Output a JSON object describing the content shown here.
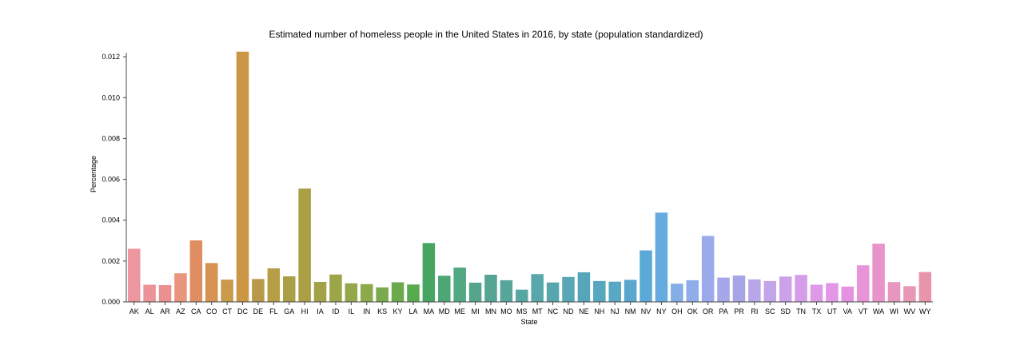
{
  "chart_data": {
    "type": "bar",
    "title": "Estimated number of homeless people in the United States in 2016, by state (population standardized)",
    "xlabel": "State",
    "ylabel": "Percentage",
    "ylim": [
      0,
      0.0122
    ],
    "yticks": [
      "0.000",
      "0.002",
      "0.004",
      "0.006",
      "0.008",
      "0.010",
      "0.012"
    ],
    "grid": false,
    "legend": "none",
    "categories": [
      "AK",
      "AL",
      "AR",
      "AZ",
      "CA",
      "CO",
      "CT",
      "DC",
      "DE",
      "FL",
      "GA",
      "HI",
      "IA",
      "ID",
      "IL",
      "IN",
      "KS",
      "KY",
      "LA",
      "MA",
      "MD",
      "ME",
      "MI",
      "MN",
      "MO",
      "MS",
      "MT",
      "NC",
      "ND",
      "NE",
      "NH",
      "NJ",
      "NM",
      "NV",
      "NY",
      "OH",
      "OK",
      "OR",
      "PA",
      "PR",
      "RI",
      "SC",
      "SD",
      "TN",
      "TX",
      "UT",
      "VA",
      "VT",
      "WA",
      "WI",
      "WV",
      "WY"
    ],
    "values": [
      0.0026,
      0.00084,
      0.00082,
      0.0014,
      0.00301,
      0.0019,
      0.00109,
      0.01225,
      0.00112,
      0.00164,
      0.00125,
      0.00555,
      0.00098,
      0.00134,
      0.00091,
      0.00087,
      0.00071,
      0.00096,
      0.00085,
      0.00288,
      0.00128,
      0.00168,
      0.00094,
      0.00133,
      0.00106,
      0.0006,
      0.00136,
      0.00095,
      0.00122,
      0.00145,
      0.00102,
      0.00099,
      0.00108,
      0.00252,
      0.00437,
      0.00089,
      0.00106,
      0.00323,
      0.00119,
      0.00129,
      0.0011,
      0.00102,
      0.00124,
      0.00132,
      0.00084,
      0.00092,
      0.00075,
      0.00179,
      0.00285,
      0.00097,
      0.00077,
      0.00146
    ],
    "colors": [
      "#ec96a0",
      "#eb9398",
      "#eb9090",
      "#e8957c",
      "#e08d62",
      "#d59251",
      "#c99a4c",
      "#cc9744",
      "#b8994a",
      "#b59e46",
      "#ab9f45",
      "#aa9f45",
      "#a2a347",
      "#9ca548",
      "#94a84b",
      "#8ca94c",
      "#79ab4d",
      "#6ba94c",
      "#56ac4d",
      "#47a562",
      "#4da774",
      "#52a883",
      "#54a58c",
      "#56a594",
      "#58a69b",
      "#56a6a2",
      "#58a8ab",
      "#56a6b0",
      "#58a7b6",
      "#56a5bb",
      "#57a7c0",
      "#58a7c4",
      "#5ba6ce",
      "#5ba9d6",
      "#66abdf",
      "#84aee6",
      "#8faceb",
      "#9aaaea",
      "#a4a8ea",
      "#a7a5e8",
      "#b9a6e8",
      "#c2a4e8",
      "#cba1e9",
      "#d59de9",
      "#de9ae9",
      "#e396e8",
      "#e492e1",
      "#e894d8",
      "#e893c9",
      "#e896bf",
      "#e897b4",
      "#e895ab"
    ]
  }
}
